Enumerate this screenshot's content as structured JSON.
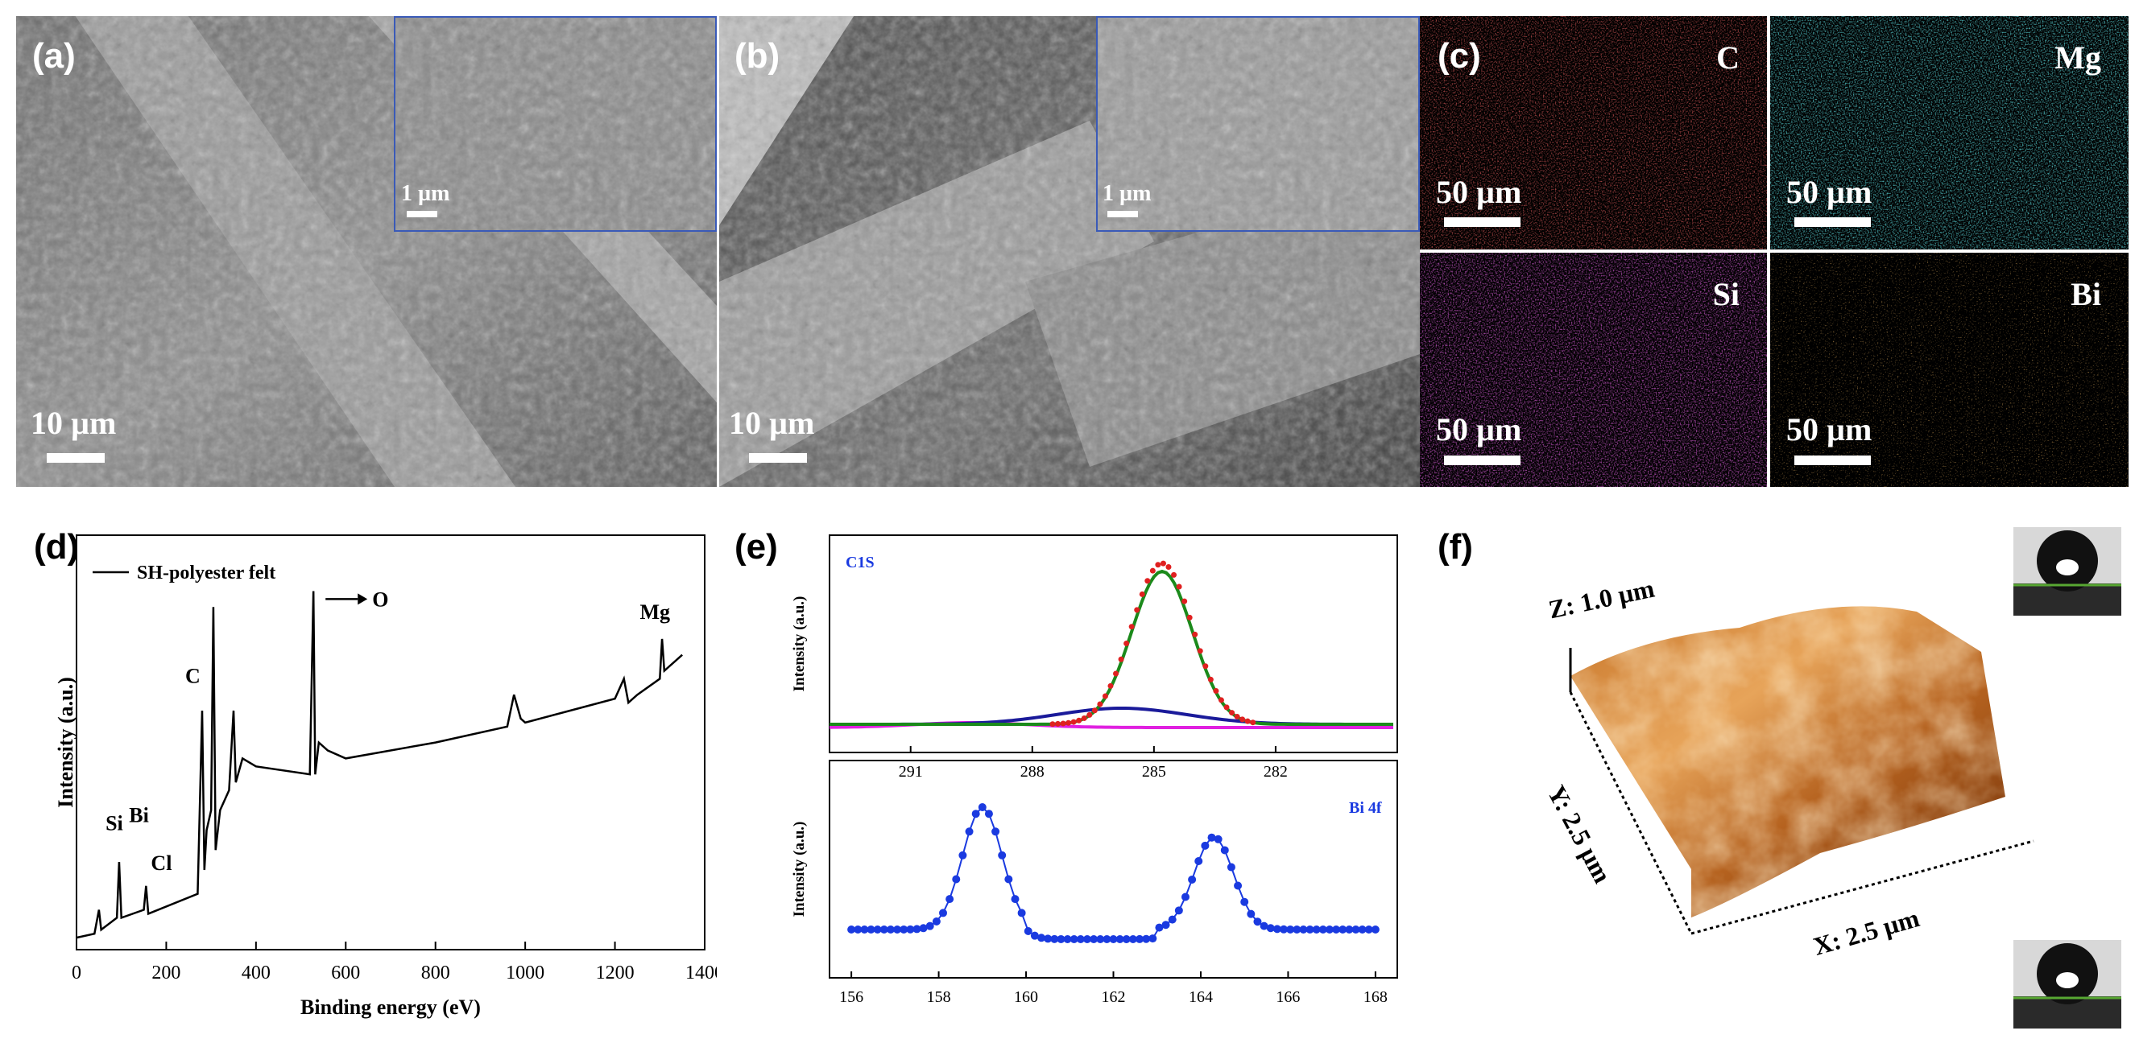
{
  "panels": {
    "a": {
      "label": "(a)",
      "scale": "10 µm",
      "inset_scale": "1 µm"
    },
    "b": {
      "label": "(b)",
      "scale": "10 µm",
      "inset_scale": "1 µm"
    },
    "c": {
      "label": "(c)",
      "maps": [
        {
          "element": "C",
          "scale": "50 µm",
          "color": "#d61e1e"
        },
        {
          "element": "Mg",
          "scale": "50 µm",
          "color": "#1ecfd6"
        },
        {
          "element": "Si",
          "scale": "50 µm",
          "color": "#c21ec2"
        },
        {
          "element": "Bi",
          "scale": "50 µm",
          "color": "#d9791e"
        }
      ]
    },
    "d": {
      "label": "(d)"
    },
    "e": {
      "label": "(e)"
    },
    "f": {
      "label": "(f)",
      "z_label": "Z: 1.0 µm",
      "y_label": "Y: 2.5 µm",
      "x_label": "X: 2.5 µm"
    }
  },
  "chart_data": [
    {
      "id": "d",
      "type": "line",
      "xlabel": "Binding energy (eV)",
      "ylabel": "Intensity (a.u.)",
      "xlim": [
        0,
        1400
      ],
      "xticks": [
        0,
        200,
        400,
        600,
        800,
        1000,
        1200,
        1400
      ],
      "xtick_labels": [
        "0",
        "200",
        "400",
        "600",
        "800",
        "1000",
        "1200",
        "1400"
      ],
      "legend": "SH-polyester felt",
      "series": [
        {
          "name": "SH-polyester felt",
          "x": [
            0,
            40,
            50,
            55,
            90,
            95,
            100,
            150,
            155,
            160,
            270,
            280,
            285,
            290,
            300,
            305,
            310,
            320,
            340,
            350,
            355,
            370,
            400,
            520,
            528,
            532,
            540,
            560,
            600,
            800,
            960,
            975,
            990,
            1000,
            1100,
            1200,
            1220,
            1230,
            1250,
            1300,
            1305,
            1310,
            1350
          ],
          "y": [
            3,
            4,
            10,
            5,
            8,
            22,
            8,
            10,
            16,
            9,
            14,
            60,
            20,
            30,
            35,
            86,
            25,
            35,
            40,
            60,
            42,
            48,
            46,
            44,
            90,
            44,
            52,
            50,
            48,
            52,
            56,
            64,
            58,
            57,
            60,
            63,
            68,
            62,
            64,
            68,
            78,
            70,
            74
          ]
        }
      ],
      "annotations": [
        "Si",
        "Bi",
        "Cl",
        "C",
        "O",
        "Mg"
      ]
    },
    {
      "id": "e-top",
      "type": "line",
      "title": "C1S",
      "ylabel": "Intensity (a.u.)",
      "xlim": [
        293,
        279
      ],
      "xticks": [
        291,
        288,
        285,
        282
      ],
      "xtick_labels": [
        "291",
        "288",
        "285",
        "282"
      ],
      "series": [
        {
          "name": "raw",
          "color": "#e02020"
        },
        {
          "name": "fit",
          "color": "#1b8a1b"
        },
        {
          "name": "component",
          "color": "#1a1a9a"
        },
        {
          "name": "background",
          "color": "#e020e0"
        }
      ]
    },
    {
      "id": "e-bottom",
      "type": "line",
      "title": "Bi 4f",
      "xlabel": "Binding energy (eV)",
      "ylabel": "Intensity (a.u.)",
      "xlim": [
        155.5,
        168.5
      ],
      "xticks": [
        156,
        158,
        160,
        162,
        164,
        166,
        168
      ],
      "xtick_labels": [
        "156",
        "158",
        "160",
        "162",
        "164",
        "166",
        "168"
      ],
      "series": [
        {
          "name": "Bi 4f",
          "color": "#1a3ae0",
          "peaks": [
            159.0,
            164.3
          ]
        }
      ]
    }
  ]
}
